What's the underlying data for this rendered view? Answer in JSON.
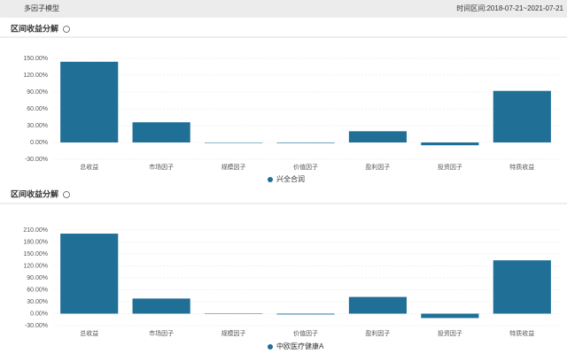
{
  "header": {
    "title": "多因子模型",
    "range": "时间区间:2018-07-21~2021-07-21"
  },
  "chart_data": [
    {
      "type": "bar",
      "title": "区间收益分解",
      "categories": [
        "总收益",
        "市场因子",
        "规模因子",
        "价值因子",
        "盈利因子",
        "投资因子",
        "特质收益"
      ],
      "series": [
        {
          "name": "兴全合润",
          "color": "#1f6f97",
          "values": [
            144,
            36,
            0,
            -1,
            20,
            -5,
            92
          ]
        }
      ],
      "ylim": [
        -30,
        150
      ],
      "yticks": [
        {
          "value": -30,
          "label": "-30.00%"
        },
        {
          "value": 0,
          "label": "0.00%"
        },
        {
          "value": 30,
          "label": "30.00%"
        },
        {
          "value": 60,
          "label": "60.00%"
        },
        {
          "value": 90,
          "label": "90.00%"
        },
        {
          "value": 120,
          "label": "120.00%"
        },
        {
          "value": 150,
          "label": "150.00%"
        }
      ],
      "grid": true,
      "legend": "bottom"
    },
    {
      "type": "bar",
      "title": "区间收益分解",
      "categories": [
        "总收益",
        "市场因子",
        "规模因子",
        "价值因子",
        "盈利因子",
        "投资因子",
        "特质收益"
      ],
      "series": [
        {
          "name": "中欧医疗健康A",
          "color": "#1f6f97",
          "values": [
            201,
            38,
            0,
            -2,
            42,
            -11,
            134
          ]
        }
      ],
      "ylim": [
        -30,
        210
      ],
      "yticks": [
        {
          "value": -30,
          "label": "-30.00%"
        },
        {
          "value": 0,
          "label": "0.00%"
        },
        {
          "value": 30,
          "label": "30.00%"
        },
        {
          "value": 60,
          "label": "60.00%"
        },
        {
          "value": 90,
          "label": "90.00%"
        },
        {
          "value": 120,
          "label": "120.00%"
        },
        {
          "value": 150,
          "label": "150.00%"
        },
        {
          "value": 180,
          "label": "180.00%"
        },
        {
          "value": 210,
          "label": "210.00%"
        }
      ],
      "grid": true,
      "legend": "bottom"
    }
  ]
}
